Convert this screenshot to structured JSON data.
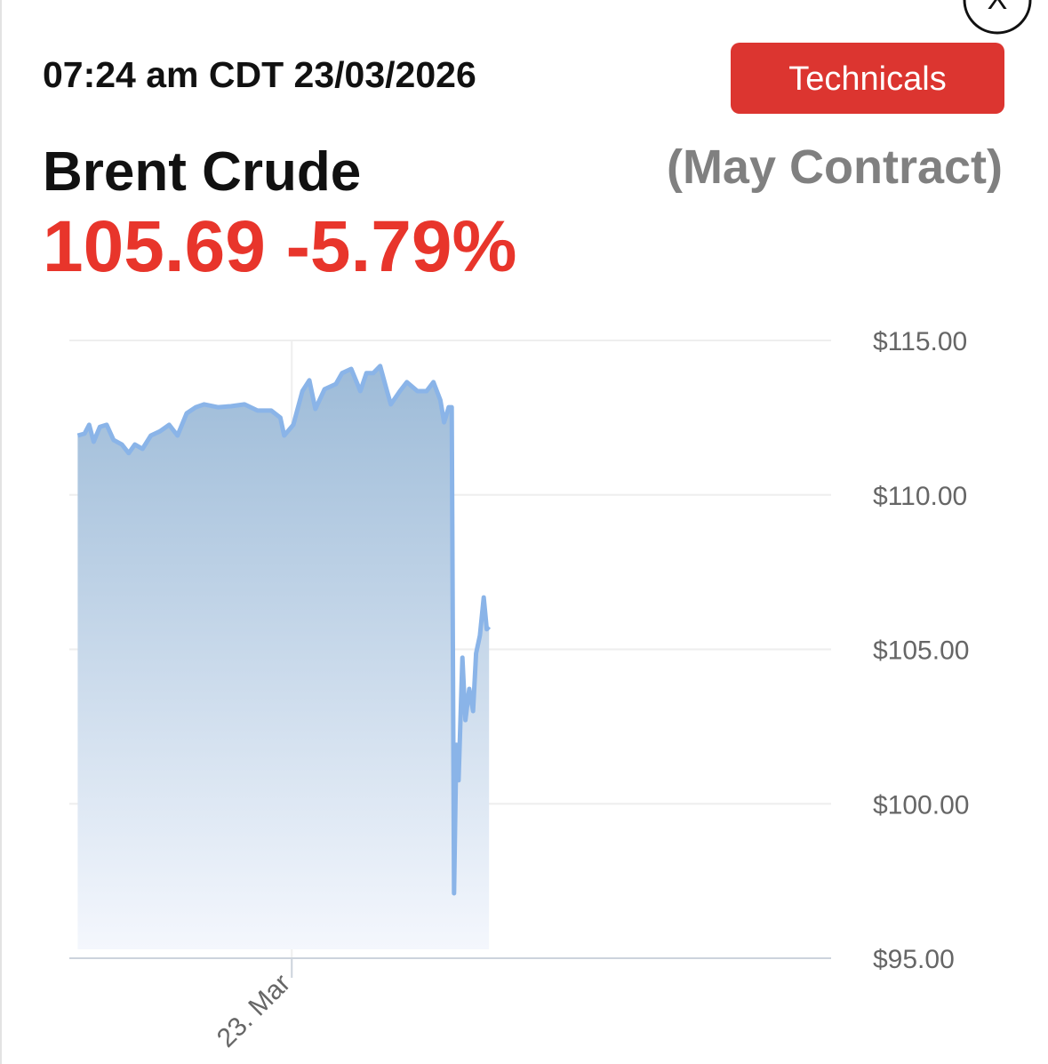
{
  "header": {
    "timestamp": "07:24 am CDT 23/03/2026",
    "button": "Technicals",
    "close": "X",
    "instrument": "Brent Crude",
    "contract": "(May Contract)",
    "price": "105.69",
    "change": "-5.79%"
  },
  "chart_data": {
    "type": "area",
    "color": "#8ab4e8",
    "x": [
      1.1,
      2.0,
      2.6,
      3.2,
      4.0,
      4.9,
      5.8,
      6.9,
      7.8,
      8.6,
      9.6,
      10.7,
      11.9,
      13.1,
      14.2,
      15.4,
      16.6,
      17.7,
      19.5,
      21.2,
      23.0,
      24.7,
      26.5,
      27.7,
      28.2,
      29.4,
      30.6,
      31.5,
      32.3,
      33.5,
      35.0,
      35.8,
      37.0,
      38.2,
      39.0,
      39.9,
      40.8,
      41.7,
      42.2,
      43.4,
      44.3,
      45.7,
      46.9,
      47.8,
      48.7,
      49.2,
      49.8,
      50.2,
      50.5,
      50.8,
      51.1,
      51.6,
      52.0,
      52.5,
      53.0,
      53.4,
      53.9,
      54.4,
      54.8,
      55.1
    ],
    "values": [
      111.92,
      111.98,
      112.27,
      111.72,
      112.2,
      112.27,
      111.78,
      111.63,
      111.35,
      111.63,
      111.49,
      111.92,
      112.06,
      112.27,
      111.92,
      112.64,
      112.84,
      112.93,
      112.84,
      112.87,
      112.93,
      112.73,
      112.73,
      112.5,
      111.92,
      112.27,
      113.36,
      113.71,
      112.78,
      113.42,
      113.59,
      113.94,
      114.08,
      113.36,
      113.94,
      113.94,
      114.17,
      113.36,
      112.93,
      113.36,
      113.65,
      113.36,
      113.36,
      113.65,
      113.07,
      112.35,
      112.84,
      112.84,
      97.1,
      101.91,
      100.76,
      104.73,
      102.71,
      103.72,
      103.0,
      104.87,
      105.45,
      106.68,
      105.65,
      105.73
    ],
    "xlim": [
      0,
      100
    ],
    "xticks": [
      {
        "value": 29.2,
        "label": "23. Mar"
      }
    ],
    "ylim": [
      95,
      115
    ],
    "yticks": [
      {
        "value": 95,
        "label": "$95.00"
      },
      {
        "value": 100,
        "label": "$100.00"
      },
      {
        "value": 105,
        "label": "$105.00"
      },
      {
        "value": 110,
        "label": "$110.00"
      },
      {
        "value": 115,
        "label": "$115.00"
      }
    ],
    "grid": true
  }
}
